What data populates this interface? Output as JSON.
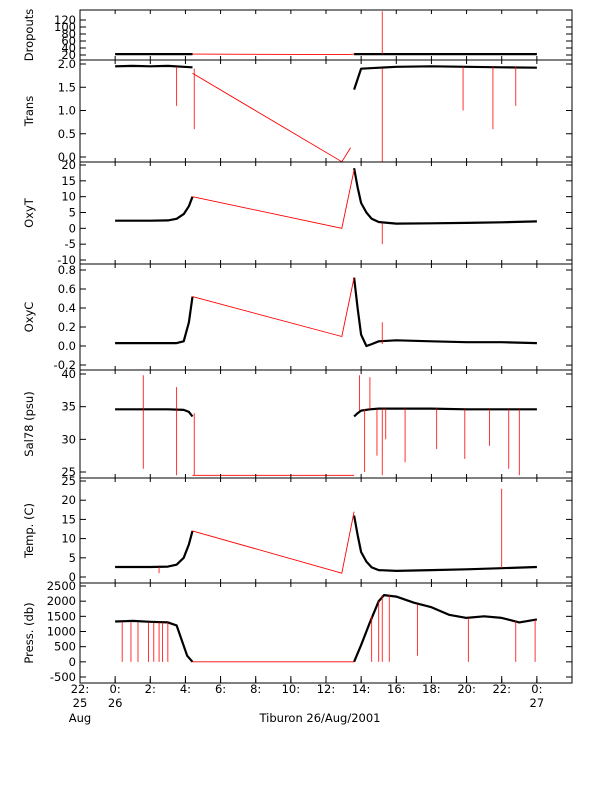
{
  "chart_data": [
    {
      "type": "line",
      "ylabel": "Dropouts",
      "ylim": [
        20,
        100
      ],
      "yticks": [
        "20",
        "40",
        "60",
        "80",
        "100",
        "120"
      ],
      "series": [
        {
          "color": "#000000",
          "segments": [
            {
              "x": [
                0.0,
                4.4
              ],
              "y": [
                22,
                22
              ]
            },
            {
              "x": [
                13.6,
                24.0
              ],
              "y": [
                22,
                22
              ]
            }
          ]
        },
        {
          "color": "#ff0000",
          "x": [
            4.4,
            13.3,
            13.6
          ],
          "y": [
            22,
            21,
            22
          ],
          "spikes": [
            {
              "x": 15.2,
              "y1": 22,
              "y2": 120
            }
          ]
        }
      ]
    },
    {
      "type": "line",
      "ylabel": "Trans",
      "ylim": [
        0.0,
        2.0
      ],
      "yticks": [
        "0.0",
        "0.5",
        "1.0",
        "1.5",
        "2.0"
      ],
      "series": [
        {
          "color": "#000000",
          "segments": [
            {
              "x": [
                0.0,
                1.0,
                2.0,
                3.0,
                3.9,
                4.4
              ],
              "y": [
                1.95,
                1.96,
                1.95,
                1.96,
                1.94,
                1.93
              ]
            },
            {
              "x": [
                13.6,
                14.0,
                16.0,
                18.0,
                20.0,
                22.0,
                24.0
              ],
              "y": [
                1.45,
                1.9,
                1.94,
                1.95,
                1.94,
                1.93,
                1.92
              ]
            }
          ]
        },
        {
          "color": "#ff0000",
          "x": [
            4.4,
            12.9,
            13.4
          ],
          "y": [
            1.8,
            -0.1,
            0.2
          ],
          "spikes": [
            {
              "x": 3.5,
              "y1": 1.94,
              "y2": 1.1
            },
            {
              "x": 4.5,
              "y1": 1.9,
              "y2": 0.6
            },
            {
              "x": 15.2,
              "y1": 1.9,
              "y2": -0.1
            },
            {
              "x": 19.8,
              "y1": 1.94,
              "y2": 1.0
            },
            {
              "x": 21.5,
              "y1": 1.94,
              "y2": 0.6
            },
            {
              "x": 22.8,
              "y1": 1.94,
              "y2": 1.1
            }
          ]
        }
      ]
    },
    {
      "type": "line",
      "ylabel": "OxyT",
      "ylim": [
        -10,
        20
      ],
      "yticks": [
        "-10",
        "-5",
        "0",
        "5",
        "10",
        "15",
        "20"
      ],
      "series": [
        {
          "color": "#000000",
          "segments": [
            {
              "x": [
                0.0,
                1.0,
                2.0,
                3.0,
                3.5,
                3.9,
                4.2,
                4.4
              ],
              "y": [
                2.4,
                2.4,
                2.4,
                2.5,
                3.0,
                4.5,
                7.0,
                10.0
              ]
            },
            {
              "x": [
                13.6,
                13.8,
                14.0,
                14.3,
                14.6,
                15.0,
                16.0,
                18.0,
                20.0,
                22.0,
                24.0
              ],
              "y": [
                19.0,
                13.0,
                8.0,
                5.0,
                3.0,
                2.0,
                1.5,
                1.6,
                1.7,
                1.9,
                2.2
              ]
            }
          ]
        },
        {
          "color": "#ff0000",
          "x": [
            4.4,
            12.9,
            13.6
          ],
          "y": [
            10.0,
            0.0,
            18.5
          ],
          "spikes": [
            {
              "x": 15.2,
              "y1": 1.6,
              "y2": -5.0
            }
          ]
        }
      ]
    },
    {
      "type": "line",
      "ylabel": "OxyC",
      "ylim": [
        -0.2,
        0.8
      ],
      "yticks": [
        "-0.2",
        "0.0",
        "0.2",
        "0.4",
        "0.6",
        "0.8"
      ],
      "series": [
        {
          "color": "#000000",
          "segments": [
            {
              "x": [
                0.0,
                1.0,
                2.0,
                3.0,
                3.5,
                3.9,
                4.2,
                4.4
              ],
              "y": [
                0.03,
                0.03,
                0.03,
                0.03,
                0.03,
                0.05,
                0.25,
                0.52
              ]
            },
            {
              "x": [
                13.6,
                13.8,
                14.0,
                14.3,
                14.6,
                15.0,
                16.0,
                18.0,
                20.0,
                22.0,
                24.0
              ],
              "y": [
                0.72,
                0.4,
                0.12,
                0.0,
                0.02,
                0.05,
                0.06,
                0.05,
                0.04,
                0.04,
                0.03
              ]
            }
          ]
        },
        {
          "color": "#ff0000",
          "x": [
            4.4,
            12.9,
            13.6
          ],
          "y": [
            0.52,
            0.1,
            0.72
          ],
          "spikes": [
            {
              "x": 15.2,
              "y1": 0.02,
              "y2": 0.25
            }
          ]
        }
      ]
    },
    {
      "type": "line",
      "ylabel": "Sal78 (psu)",
      "ylim": [
        25,
        40
      ],
      "yticks": [
        "25",
        "30",
        "35",
        "40"
      ],
      "series": [
        {
          "color": "#000000",
          "segments": [
            {
              "x": [
                0.0,
                1.0,
                2.0,
                3.0,
                3.9,
                4.2,
                4.4
              ],
              "y": [
                34.6,
                34.6,
                34.6,
                34.6,
                34.5,
                34.2,
                33.5
              ]
            },
            {
              "x": [
                13.6,
                13.8,
                14.0,
                14.5,
                15.0,
                16.0,
                18.0,
                20.0,
                22.0,
                24.0
              ],
              "y": [
                33.5,
                34.0,
                34.4,
                34.6,
                34.7,
                34.7,
                34.7,
                34.6,
                34.6,
                34.6
              ]
            }
          ]
        },
        {
          "color": "#ff0000",
          "x": [
            4.4,
            13.6
          ],
          "y": [
            24.5,
            24.5
          ],
          "spikes": [
            {
              "x": 1.6,
              "y1": 34.6,
              "y2": 25.5
            },
            {
              "x": 1.6,
              "y1": 34.6,
              "y2": 39.8
            },
            {
              "x": 3.5,
              "y1": 34.6,
              "y2": 24.5
            },
            {
              "x": 3.5,
              "y1": 34.6,
              "y2": 38.0
            },
            {
              "x": 4.5,
              "y1": 34.0,
              "y2": 24.5
            },
            {
              "x": 13.9,
              "y1": 34.4,
              "y2": 39.8
            },
            {
              "x": 14.2,
              "y1": 34.6,
              "y2": 25.0
            },
            {
              "x": 14.5,
              "y1": 34.6,
              "y2": 39.5
            },
            {
              "x": 14.9,
              "y1": 34.6,
              "y2": 27.5
            },
            {
              "x": 15.2,
              "y1": 34.7,
              "y2": 24.5
            },
            {
              "x": 15.4,
              "y1": 34.7,
              "y2": 30.0
            },
            {
              "x": 16.5,
              "y1": 34.7,
              "y2": 26.5
            },
            {
              "x": 18.3,
              "y1": 34.7,
              "y2": 28.5
            },
            {
              "x": 19.9,
              "y1": 34.6,
              "y2": 27.0
            },
            {
              "x": 21.3,
              "y1": 34.6,
              "y2": 29.0
            },
            {
              "x": 22.4,
              "y1": 34.6,
              "y2": 25.5
            },
            {
              "x": 23.0,
              "y1": 34.6,
              "y2": 24.5
            }
          ]
        }
      ]
    },
    {
      "type": "line",
      "ylabel": "Temp. (C)",
      "ylim": [
        0,
        25
      ],
      "yticks": [
        "0",
        "5",
        "10",
        "15",
        "20",
        "25"
      ],
      "series": [
        {
          "color": "#000000",
          "segments": [
            {
              "x": [
                0.0,
                1.0,
                2.0,
                3.0,
                3.5,
                3.9,
                4.2,
                4.4
              ],
              "y": [
                2.6,
                2.6,
                2.6,
                2.7,
                3.2,
                5.0,
                8.5,
                12.0
              ]
            },
            {
              "x": [
                13.6,
                13.8,
                14.0,
                14.3,
                14.6,
                15.0,
                16.0,
                18.0,
                20.0,
                22.0,
                24.0
              ],
              "y": [
                16.0,
                11.0,
                6.5,
                4.0,
                2.5,
                1.8,
                1.6,
                1.8,
                2.0,
                2.3,
                2.6
              ]
            }
          ]
        },
        {
          "color": "#ff0000",
          "x": [
            4.4,
            12.9,
            13.6
          ],
          "y": [
            12.0,
            1.0,
            17.0
          ],
          "spikes": [
            {
              "x": 2.5,
              "y1": 2.6,
              "y2": 1.0
            },
            {
              "x": 22.0,
              "y1": 2.3,
              "y2": 23.0
            }
          ]
        }
      ]
    },
    {
      "type": "line",
      "ylabel": "Press. (db)",
      "ylim": [
        -500,
        2500
      ],
      "yticks": [
        "-500",
        "0",
        "500",
        "1000",
        "1500",
        "2000",
        "2500"
      ],
      "series": [
        {
          "color": "#000000",
          "segments": [
            {
              "x": [
                0.0,
                1.0,
                2.0,
                3.0,
                3.5,
                3.8,
                4.1,
                4.4
              ],
              "y": [
                1330,
                1350,
                1320,
                1300,
                1200,
                700,
                200,
                0
              ]
            },
            {
              "x": [
                13.6,
                14.0,
                14.5,
                15.0,
                15.3,
                16.0,
                17.0,
                18.0,
                19.0,
                20.0,
                21.0,
                22.0,
                23.0,
                24.0
              ],
              "y": [
                0,
                550,
                1300,
                2000,
                2200,
                2150,
                1950,
                1800,
                1550,
                1450,
                1500,
                1450,
                1300,
                1400
              ]
            }
          ]
        },
        {
          "color": "#ff0000",
          "x": [
            4.4,
            13.6
          ],
          "y": [
            0,
            0
          ],
          "spikes": [
            {
              "x": 0.4,
              "y1": 1300,
              "y2": 0
            },
            {
              "x": 0.9,
              "y1": 1300,
              "y2": 0
            },
            {
              "x": 1.3,
              "y1": 1300,
              "y2": 0
            },
            {
              "x": 1.9,
              "y1": 1300,
              "y2": 0
            },
            {
              "x": 2.2,
              "y1": 1300,
              "y2": 0
            },
            {
              "x": 2.5,
              "y1": 1300,
              "y2": 0
            },
            {
              "x": 2.7,
              "y1": 1300,
              "y2": 0
            },
            {
              "x": 3.0,
              "y1": 1300,
              "y2": 0
            },
            {
              "x": 14.6,
              "y1": 1500,
              "y2": 0
            },
            {
              "x": 15.0,
              "y1": 2000,
              "y2": 0
            },
            {
              "x": 15.2,
              "y1": 2200,
              "y2": 0
            },
            {
              "x": 15.6,
              "y1": 2200,
              "y2": 0
            },
            {
              "x": 17.2,
              "y1": 1900,
              "y2": 200
            },
            {
              "x": 20.1,
              "y1": 1450,
              "y2": 0
            },
            {
              "x": 22.8,
              "y1": 1350,
              "y2": 0
            },
            {
              "x": 23.9,
              "y1": 1380,
              "y2": 0
            }
          ]
        }
      ]
    }
  ],
  "x_axis": {
    "title": "Tiburon 26/Aug/2001",
    "xlim": [
      -2,
      26
    ],
    "ticks": [
      {
        "x": -2,
        "hour": "22:",
        "day": "25",
        "month": "Aug"
      },
      {
        "x": 0,
        "hour": "0:",
        "day": "26",
        "month": ""
      },
      {
        "x": 2,
        "hour": "2:",
        "day": "",
        "month": ""
      },
      {
        "x": 4,
        "hour": "4:",
        "day": "",
        "month": ""
      },
      {
        "x": 6,
        "hour": "6:",
        "day": "",
        "month": ""
      },
      {
        "x": 8,
        "hour": "8:",
        "day": "",
        "month": ""
      },
      {
        "x": 10,
        "hour": "10:",
        "day": "",
        "month": ""
      },
      {
        "x": 12,
        "hour": "12:",
        "day": "",
        "month": ""
      },
      {
        "x": 14,
        "hour": "14:",
        "day": "",
        "month": ""
      },
      {
        "x": 16,
        "hour": "16:",
        "day": "",
        "month": ""
      },
      {
        "x": 18,
        "hour": "18:",
        "day": "",
        "month": ""
      },
      {
        "x": 20,
        "hour": "20:",
        "day": "",
        "month": ""
      },
      {
        "x": 22,
        "hour": "22:",
        "day": "",
        "month": ""
      },
      {
        "x": 24,
        "hour": "0:",
        "day": "27",
        "month": ""
      }
    ]
  }
}
